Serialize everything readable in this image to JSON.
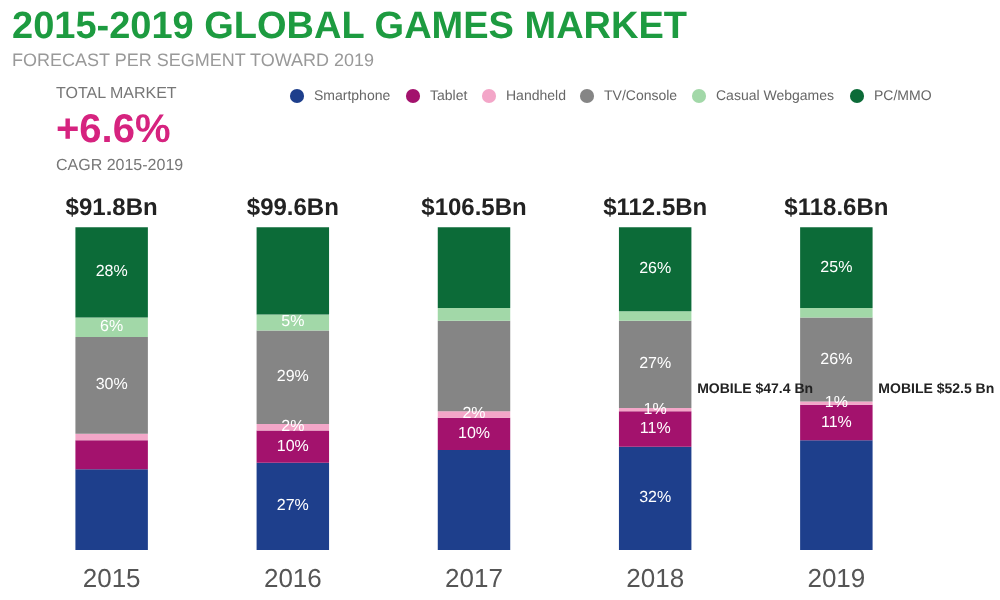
{
  "chart_data": {
    "type": "bar",
    "stacked": true,
    "title": "2015-2019 GLOBAL GAMES MARKET",
    "subtitle": "FORECAST PER SEGMENT TOWARD 2019",
    "categories": [
      "2015",
      "2016",
      "2017",
      "2018",
      "2019"
    ],
    "series": [
      {
        "name": "Smartphone",
        "color": "#1e3f8c",
        "values": [
          25,
          27,
          31,
          32,
          34
        ],
        "value_labels": [
          null,
          "27%",
          null,
          "32%",
          null
        ]
      },
      {
        "name": "Tablet",
        "color": "#a3126d",
        "values": [
          9,
          10,
          10,
          11,
          11
        ],
        "value_labels": [
          null,
          "10%",
          "10%",
          "11%",
          "11%"
        ]
      },
      {
        "name": "Handheld",
        "color": "#f3a6c8",
        "values": [
          2,
          2,
          2,
          1,
          1
        ],
        "value_labels": [
          null,
          "2%",
          "2%",
          "1%",
          "1%"
        ]
      },
      {
        "name": "TV/Console",
        "color": "#858585",
        "values": [
          30,
          29,
          28,
          27,
          26
        ],
        "value_labels": [
          "30%",
          "29%",
          null,
          "27%",
          "26%"
        ]
      },
      {
        "name": "Casual Webgames",
        "color": "#a2d8a8",
        "values": [
          6,
          5,
          4,
          3,
          3
        ],
        "value_labels": [
          "6%",
          "5%",
          null,
          null,
          null
        ]
      },
      {
        "name": "PC/MMO",
        "color": "#0c6b38",
        "values": [
          28,
          27,
          25,
          26,
          25
        ],
        "value_labels": [
          "28%",
          null,
          null,
          "26%",
          "25%"
        ]
      }
    ],
    "annotations": [
      "TOTAL MARKET",
      "+6.6%",
      "CAGR 2015-2019",
      "MOBILE $47.4 Bn",
      "MOBILE $52.5 Bn",
      {
        "text": "$91.8Bn",
        "x": "2015",
        "y": 100
      },
      {
        "text": "$99.6Bn",
        "x": "2016",
        "y": 100
      },
      {
        "text": "$106.5Bn",
        "x": "2017",
        "y": 100
      },
      {
        "text": "$112.5Bn",
        "x": "2018",
        "y": 100
      },
      {
        "text": "$118.6Bn",
        "x": "2019",
        "y": 100
      }
    ],
    "legend": "top right",
    "grid": false
  }
}
